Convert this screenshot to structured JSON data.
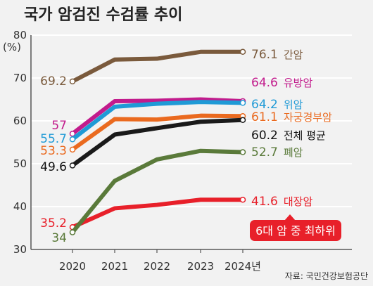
{
  "chart_data": {
    "type": "line",
    "title": "국가 암검진 수검률 추이",
    "ylabel": "(%)",
    "ylim": [
      30,
      80
    ],
    "yticks": [
      30,
      40,
      50,
      60,
      70,
      80
    ],
    "x": [
      "2020",
      "2021",
      "2022",
      "2023",
      "2024년"
    ],
    "grid": true,
    "series": [
      {
        "name": "간암",
        "color": "#7a5a3c",
        "values": [
          69.2,
          74.3,
          74.5,
          76.1,
          76.1
        ],
        "start_label": "69.2",
        "end_label": "76.1"
      },
      {
        "name": "유방암",
        "color": "#c21b8c",
        "values": [
          57.0,
          64.6,
          64.7,
          65.0,
          64.6
        ],
        "start_label": "57",
        "end_label": "64.6"
      },
      {
        "name": "위암",
        "color": "#1f9ad6",
        "values": [
          55.7,
          63.3,
          64.0,
          64.4,
          64.2
        ],
        "start_label": "55.7",
        "end_label": "64.2"
      },
      {
        "name": "자궁경부암",
        "color": "#ea6a1f",
        "values": [
          53.3,
          60.4,
          60.3,
          61.2,
          61.1
        ],
        "start_label": "53.3",
        "end_label": "61.1"
      },
      {
        "name": "전체 평균",
        "color": "#1a1a1a",
        "values": [
          49.6,
          56.8,
          58.3,
          59.8,
          60.2
        ],
        "start_label": "49.6",
        "end_label": "60.2"
      },
      {
        "name": "폐암",
        "color": "#5a7a3a",
        "values": [
          34.0,
          46.0,
          51.0,
          53.0,
          52.7
        ],
        "start_label": "34",
        "end_label": "52.7"
      },
      {
        "name": "대장암",
        "color": "#e8202a",
        "values": [
          35.2,
          39.6,
          40.4,
          41.6,
          41.6
        ],
        "start_label": "35.2",
        "end_label": "41.6"
      }
    ],
    "annotation": "6대 암 중 최하위",
    "source": "자료: 국민건강보험공단"
  }
}
